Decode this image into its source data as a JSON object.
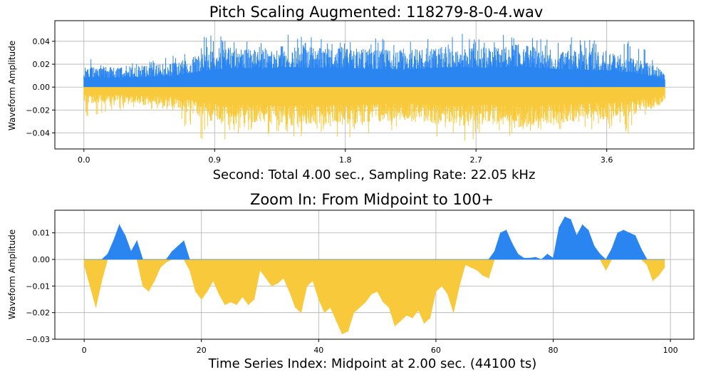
{
  "colors": {
    "positive": "#2a85f0",
    "negative": "#f8c93a",
    "grid": "#b0b0b0",
    "frame": "#000000"
  },
  "chart_data": [
    {
      "type": "area",
      "title": "Pitch Scaling Augmented: 118279-8-0-4.wav",
      "xlabel": "Second: Total 4.00 sec., Sampling Rate: 22.05 kHz",
      "ylabel": "Waveform Amplitude",
      "xlim": [
        -0.2,
        4.2
      ],
      "ylim": [
        -0.054,
        0.058
      ],
      "x_ticks": [
        0.0,
        0.9,
        1.8,
        2.7,
        3.6
      ],
      "x_tick_labels": [
        "0.0",
        "0.9",
        "1.8",
        "2.7",
        "3.6"
      ],
      "y_ticks": [
        -0.04,
        -0.02,
        0.0,
        0.02,
        0.04
      ],
      "y_tick_labels": [
        "−0.04",
        "−0.02",
        "0.00",
        "0.02",
        "0.04"
      ],
      "grid": true,
      "duration_sec": 4.0,
      "envelope": {
        "x": [
          0.0,
          0.2,
          0.4,
          0.6,
          0.8,
          1.0,
          1.2,
          1.4,
          1.6,
          1.8,
          2.0,
          2.2,
          2.4,
          2.6,
          2.8,
          3.0,
          3.2,
          3.4,
          3.6,
          3.8,
          4.0
        ],
        "positive": [
          0.012,
          0.012,
          0.013,
          0.014,
          0.02,
          0.024,
          0.023,
          0.025,
          0.024,
          0.024,
          0.023,
          0.022,
          0.024,
          0.025,
          0.024,
          0.026,
          0.023,
          0.022,
          0.021,
          0.018,
          0.01
        ],
        "negative": [
          -0.01,
          -0.01,
          -0.011,
          -0.012,
          -0.019,
          -0.023,
          -0.022,
          -0.024,
          -0.022,
          -0.023,
          -0.021,
          -0.02,
          -0.023,
          -0.024,
          -0.022,
          -0.025,
          -0.022,
          -0.021,
          -0.02,
          -0.017,
          -0.01
        ],
        "max": [
          0.027,
          0.021,
          0.021,
          0.028,
          0.046,
          0.044,
          0.04,
          0.048,
          0.045,
          0.044,
          0.048,
          0.041,
          0.045,
          0.049,
          0.047,
          0.05,
          0.042,
          0.044,
          0.04,
          0.043,
          0.01
        ],
        "min": [
          -0.028,
          -0.02,
          -0.021,
          -0.025,
          -0.045,
          -0.047,
          -0.041,
          -0.046,
          -0.042,
          -0.045,
          -0.042,
          -0.04,
          -0.044,
          -0.048,
          -0.043,
          -0.049,
          -0.04,
          -0.041,
          -0.038,
          -0.042,
          -0.01
        ]
      }
    },
    {
      "type": "area",
      "title": "Zoom In: From Midpoint to 100+",
      "xlabel": "Time Series Index: Midpoint at 2.00 sec. (44100 ts)",
      "ylabel": "Waveform Amplitude",
      "xlim": [
        -5,
        104
      ],
      "ylim": [
        -0.03,
        0.0185
      ],
      "x_ticks": [
        0,
        20,
        40,
        60,
        80,
        100
      ],
      "x_tick_labels": [
        "0",
        "20",
        "40",
        "60",
        "80",
        "100"
      ],
      "y_ticks": [
        -0.03,
        -0.02,
        -0.01,
        0.0,
        0.01
      ],
      "y_tick_labels": [
        "−0.03",
        "−0.02",
        "−0.01",
        "0.00",
        "0.01"
      ],
      "grid": true,
      "x": [
        0,
        1,
        2,
        3,
        4,
        5,
        6,
        7,
        8,
        9,
        10,
        11,
        12,
        13,
        14,
        15,
        16,
        17,
        18,
        19,
        20,
        21,
        22,
        23,
        24,
        25,
        26,
        27,
        28,
        29,
        30,
        31,
        32,
        33,
        34,
        35,
        36,
        37,
        38,
        39,
        40,
        41,
        42,
        43,
        44,
        45,
        46,
        47,
        48,
        49,
        50,
        51,
        52,
        53,
        54,
        55,
        56,
        57,
        58,
        59,
        60,
        61,
        62,
        63,
        64,
        65,
        66,
        67,
        68,
        69,
        70,
        71,
        72,
        73,
        74,
        75,
        76,
        77,
        78,
        79,
        80,
        81,
        82,
        83,
        84,
        85,
        86,
        87,
        88,
        89,
        90,
        91,
        92,
        93,
        94,
        95,
        96,
        97,
        98,
        99
      ],
      "y": [
        -0.002,
        -0.01,
        -0.018,
        -0.008,
        0.002,
        0.007,
        0.013,
        0.009,
        0.003,
        0.007,
        -0.01,
        -0.012,
        -0.008,
        -0.003,
        -0.001,
        0.003,
        0.005,
        0.007,
        -0.004,
        -0.012,
        -0.015,
        -0.012,
        -0.008,
        -0.013,
        -0.017,
        -0.016,
        -0.017,
        -0.014,
        -0.017,
        -0.015,
        -0.004,
        -0.007,
        -0.01,
        -0.009,
        -0.007,
        -0.012,
        -0.018,
        -0.02,
        -0.01,
        -0.008,
        -0.015,
        -0.02,
        -0.018,
        -0.023,
        -0.028,
        -0.027,
        -0.02,
        -0.018,
        -0.016,
        -0.013,
        -0.012,
        -0.016,
        -0.018,
        -0.025,
        -0.023,
        -0.021,
        -0.022,
        -0.019,
        -0.024,
        -0.022,
        -0.012,
        -0.01,
        -0.013,
        -0.02,
        -0.01,
        -0.002,
        -0.003,
        -0.004,
        -0.006,
        -0.007,
        0.003,
        0.01,
        0.011,
        0.006,
        0.002,
        0.0005,
        0.0005,
        0.0008,
        0.0,
        0.002,
        0.0005,
        0.012,
        0.016,
        0.015,
        0.009,
        0.013,
        0.011,
        0.005,
        0.002,
        -0.004,
        0.004,
        0.01,
        0.011,
        0.01,
        0.009,
        0.004,
        -0.002,
        -0.008,
        -0.006,
        -0.003
      ]
    }
  ]
}
